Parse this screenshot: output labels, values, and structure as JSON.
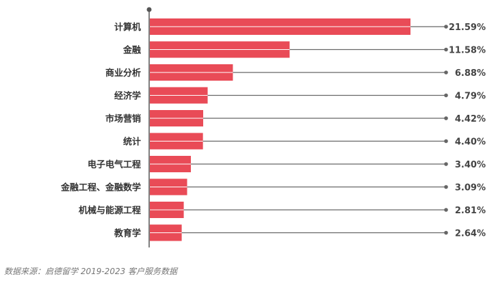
{
  "chart_data": {
    "type": "bar",
    "orientation": "horizontal",
    "categories": [
      "计算机",
      "金融",
      "商业分析",
      "经济学",
      "市场营销",
      "统计",
      "电子电气工程",
      "金融工程、金融数学",
      "机械与能源工程",
      "教育学"
    ],
    "values": [
      21.59,
      11.58,
      6.88,
      4.79,
      4.42,
      4.4,
      3.4,
      3.09,
      2.81,
      2.64
    ],
    "value_labels": [
      "21.59%",
      "11.58%",
      "6.88%",
      "4.79%",
      "4.42%",
      "4.40%",
      "3.40%",
      "3.09%",
      "2.81%",
      "2.64%"
    ],
    "unit": "%",
    "xlim": [
      0,
      21.59
    ],
    "grid": false,
    "legend": "none",
    "bar_color": "#e94b57",
    "axis_color": "#555555",
    "leader_line_color": "#666666"
  },
  "source_note": "数据来源：启德留学 2019-2023 客户服务数据"
}
